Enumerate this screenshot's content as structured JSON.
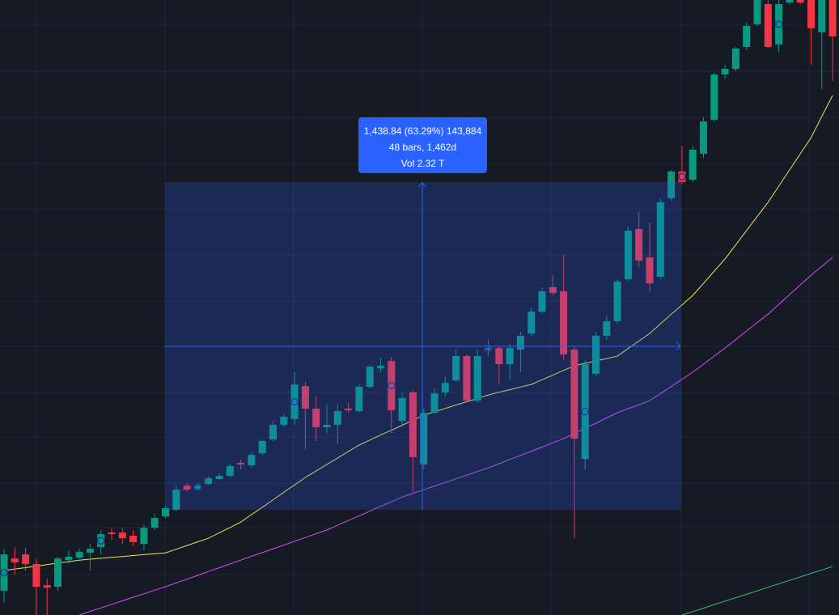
{
  "chart_data": {
    "type": "candlestick",
    "ylim": [
      1810,
      4510
    ],
    "up_color": "#089981",
    "down_color": "#f23645",
    "candles": [
      [
        1916,
        2101,
        1863,
        2076
      ],
      [
        2058,
        2108,
        1987,
        2041
      ],
      [
        2076,
        2105,
        2005,
        2034
      ],
      [
        2034,
        2058,
        1810,
        1934
      ],
      [
        1941,
        1970,
        1810,
        1930
      ],
      [
        1934,
        2066,
        1916,
        2058
      ],
      [
        2051,
        2094,
        2034,
        2066
      ],
      [
        2062,
        2101,
        2048,
        2087
      ],
      [
        2083,
        2122,
        2005,
        2101
      ],
      [
        2108,
        2183,
        2076,
        2165
      ],
      [
        2172,
        2193,
        2140,
        2165
      ],
      [
        2172,
        2193,
        2122,
        2147
      ],
      [
        2158,
        2183,
        2112,
        2130
      ],
      [
        2122,
        2208,
        2094,
        2193
      ],
      [
        2193,
        2254,
        2183,
        2236
      ],
      [
        2243,
        2289,
        2236,
        2279
      ],
      [
        2272,
        2378,
        2265,
        2360
      ],
      [
        2378,
        2389,
        2353,
        2360
      ],
      [
        2364,
        2389,
        2357,
        2378
      ],
      [
        2385,
        2421,
        2378,
        2410
      ],
      [
        2407,
        2432,
        2400,
        2421
      ],
      [
        2421,
        2474,
        2414,
        2464
      ],
      [
        2478,
        2492,
        2449,
        2471
      ],
      [
        2467,
        2527,
        2456,
        2513
      ],
      [
        2520,
        2581,
        2510,
        2574
      ],
      [
        2581,
        2662,
        2574,
        2645
      ],
      [
        2645,
        2691,
        2634,
        2680
      ],
      [
        2670,
        2876,
        2645,
        2822
      ],
      [
        2815,
        2833,
        2538,
        2716
      ],
      [
        2716,
        2769,
        2574,
        2634
      ],
      [
        2634,
        2734,
        2609,
        2645
      ],
      [
        2645,
        2734,
        2563,
        2705
      ],
      [
        2716,
        2741,
        2698,
        2709
      ],
      [
        2705,
        2822,
        2698,
        2812
      ],
      [
        2812,
        2911,
        2805,
        2900
      ],
      [
        2893,
        2940,
        2876,
        2904
      ],
      [
        2925,
        2943,
        2609,
        2709
      ],
      [
        2662,
        2787,
        2645,
        2762
      ],
      [
        2787,
        2798,
        2350,
        2503
      ],
      [
        2471,
        2716,
        2449,
        2698
      ],
      [
        2698,
        2805,
        2691,
        2783
      ],
      [
        2787,
        2858,
        2769,
        2829
      ],
      [
        2840,
        2975,
        2833,
        2947
      ],
      [
        2947,
        2954,
        2744,
        2751
      ],
      [
        2751,
        2975,
        2741,
        2947
      ],
      [
        2975,
        3018,
        2947,
        2982
      ],
      [
        2982,
        2989,
        2822,
        2911
      ],
      [
        2911,
        3000,
        2840,
        2982
      ],
      [
        2975,
        3053,
        2876,
        3036
      ],
      [
        3046,
        3160,
        3036,
        3142
      ],
      [
        3142,
        3249,
        3131,
        3231
      ],
      [
        3249,
        3302,
        3213,
        3224
      ],
      [
        3231,
        3391,
        2929,
        2954
      ],
      [
        2975,
        2989,
        2147,
        2584
      ],
      [
        2495,
        2929,
        2449,
        2911
      ],
      [
        2869,
        3053,
        2858,
        3036
      ],
      [
        3036,
        3124,
        3018,
        3100
      ],
      [
        3100,
        3284,
        3089,
        3274
      ],
      [
        3284,
        3515,
        3274,
        3497
      ],
      [
        3505,
        3579,
        3338,
        3366
      ],
      [
        3380,
        3533,
        3231,
        3266
      ],
      [
        3295,
        3640,
        3284,
        3622
      ],
      [
        3640,
        3764,
        3629,
        3757
      ],
      [
        3757,
        3870,
        3700,
        3711
      ],
      [
        3721,
        3870,
        3711,
        3853
      ],
      [
        3835,
        3995,
        3817,
        3977
      ],
      [
        3984,
        4190,
        3977,
        4183
      ],
      [
        4183,
        4226,
        4162,
        4208
      ],
      [
        4208,
        4304,
        4197,
        4297
      ],
      [
        4304,
        4411,
        4290,
        4396
      ],
      [
        4403,
        4510,
        4396,
        4510
      ],
      [
        4492,
        4510,
        4297,
        4304
      ],
      [
        4315,
        4510,
        4279,
        4492
      ],
      [
        4499,
        4510,
        4492,
        4510
      ],
      [
        4510,
        4510,
        4492,
        4499
      ],
      [
        4510,
        4510,
        4226,
        4386
      ],
      [
        4368,
        4510,
        4119,
        4510
      ],
      [
        4510,
        4510,
        4155,
        4350
      ]
    ],
    "series": [
      {
        "color": "#f5e15b",
        "values": [
          2005,
          2012,
          2018,
          2025,
          2031,
          2038,
          2044,
          2051,
          2055,
          2059,
          2063,
          2067,
          2071,
          2075,
          2079,
          2083,
          2099,
          2115,
          2131,
          2147,
          2171,
          2194,
          2218,
          2251,
          2283,
          2316,
          2349,
          2381,
          2414,
          2442,
          2471,
          2499,
          2528,
          2556,
          2578,
          2600,
          2621,
          2643,
          2665,
          2687,
          2702,
          2717,
          2732,
          2746,
          2761,
          2776,
          2788,
          2799,
          2811,
          2822,
          2843,
          2863,
          2884,
          2904,
          2915,
          2926,
          2936,
          2947,
          2980,
          3013,
          3046,
          3088,
          3130,
          3171,
          3213,
          3266,
          3320,
          3373,
          3435,
          3498,
          3560,
          3622,
          3693,
          3764,
          3835,
          3906,
          3999,
          4091
        ]
      },
      {
        "color": "#d84ef0",
        "values": [
          null,
          null,
          null,
          null,
          null,
          null,
          null,
          1810,
          1826,
          1841,
          1857,
          1872,
          1888,
          1903,
          1919,
          1934,
          1951,
          1967,
          1984,
          2001,
          2018,
          2034,
          2051,
          2068,
          2084,
          2101,
          2117,
          2134,
          2150,
          2167,
          2183,
          2204,
          2225,
          2245,
          2266,
          2287,
          2307,
          2328,
          2344,
          2360,
          2376,
          2392,
          2408,
          2424,
          2440,
          2456,
          2474,
          2493,
          2511,
          2529,
          2547,
          2566,
          2584,
          2607,
          2630,
          2652,
          2675,
          2698,
          2716,
          2733,
          2751,
          2782,
          2813,
          2845,
          2876,
          2911,
          2947,
          2982,
          3019,
          3057,
          3094,
          3131,
          3174,
          3217,
          3259,
          3302,
          3341,
          3380
        ]
      },
      {
        "color": "#3fbf6a",
        "values": [
          null,
          null,
          null,
          null,
          null,
          null,
          null,
          null,
          null,
          null,
          null,
          null,
          null,
          null,
          null,
          null,
          null,
          null,
          null,
          null,
          null,
          null,
          null,
          null,
          null,
          null,
          null,
          null,
          null,
          null,
          null,
          null,
          null,
          null,
          null,
          null,
          null,
          null,
          null,
          null,
          null,
          null,
          null,
          null,
          null,
          null,
          null,
          null,
          null,
          null,
          null,
          null,
          null,
          null,
          null,
          null,
          null,
          null,
          null,
          null,
          null,
          null,
          null,
          1810,
          1825,
          1840,
          1856,
          1871,
          1886,
          1901,
          1916,
          1932,
          1947,
          1962,
          1977,
          1993,
          2008,
          2023
        ]
      }
    ]
  },
  "measure_label": {
    "lines": [
      "1,438.84 (63.29%) 143,884",
      "48 bars, 1,462d",
      "Vol 2.32 T"
    ]
  }
}
